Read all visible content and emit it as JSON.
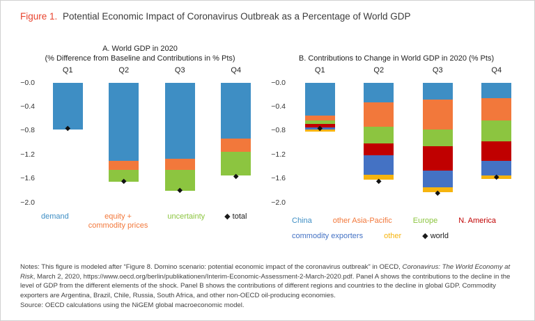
{
  "figure": {
    "label": "Figure 1.",
    "title": "Potential Economic Impact of Coronavirus Outbreak as a Percentage of World GDP"
  },
  "chart_data": [
    {
      "type": "bar",
      "stacked": true,
      "title_lines": [
        "A. World GDP in 2020",
        "(% Difference from Baseline and Contributions in % Pts)"
      ],
      "categories": [
        "Q1",
        "Q2",
        "Q3",
        "Q4"
      ],
      "series": [
        {
          "name": "demand",
          "color": "#3e8ec4",
          "values": [
            -0.78,
            -1.3,
            -1.27,
            -0.93
          ]
        },
        {
          "name": "equity + commodity prices",
          "color": "#f2783b",
          "values": [
            0,
            -0.15,
            -0.18,
            -0.22
          ]
        },
        {
          "name": "uncertainty",
          "color": "#8cc540",
          "values": [
            0,
            -0.2,
            -0.35,
            -0.4
          ]
        }
      ],
      "markers": {
        "name": "total",
        "symbol": "diamond",
        "values": [
          -0.77,
          -1.65,
          -1.8,
          -1.57
        ]
      },
      "ylim": [
        -2.0,
        0.0
      ],
      "yticks": [
        0,
        -0.4,
        -0.8,
        -1.2,
        -1.6,
        -2.0
      ],
      "ytick_labels": [
        "−0.0",
        "−0.4",
        "−0.8",
        "−1.2",
        "−1.6",
        "−2.0"
      ],
      "grid": false,
      "legend_position": "bottom",
      "legend_rows": [
        [
          {
            "label": "demand",
            "color": "#3e8ec4"
          },
          {
            "label": "equity +\ncommodity prices",
            "color": "#f2783b"
          },
          {
            "label": "uncertainty",
            "color": "#8cc540"
          },
          {
            "label": "total",
            "color": "#1a1a1a",
            "diamond": true
          }
        ]
      ]
    },
    {
      "type": "bar",
      "stacked": true,
      "title_lines": [
        "B. Contributions to Change in World GDP in 2020 (% Pts)"
      ],
      "categories": [
        "Q1",
        "Q2",
        "Q3",
        "Q4"
      ],
      "series": [
        {
          "name": "China",
          "color": "#3e8ec4",
          "values": [
            -0.55,
            -0.33,
            -0.28,
            -0.25
          ]
        },
        {
          "name": "other Asia-Pacific",
          "color": "#f2783b",
          "values": [
            -0.08,
            -0.4,
            -0.5,
            -0.38
          ]
        },
        {
          "name": "Europe",
          "color": "#8cc540",
          "values": [
            -0.06,
            -0.28,
            -0.28,
            -0.35
          ]
        },
        {
          "name": "N. America",
          "color": "#c00000",
          "values": [
            -0.05,
            -0.2,
            -0.4,
            -0.32
          ]
        },
        {
          "name": "commodity exporters",
          "color": "#4472c4",
          "values": [
            -0.04,
            -0.33,
            -0.28,
            -0.25
          ]
        },
        {
          "name": "other",
          "color": "#f6b40e",
          "values": [
            -0.03,
            -0.08,
            -0.09,
            -0.05
          ]
        }
      ],
      "markers": {
        "name": "world",
        "symbol": "diamond",
        "values": [
          -0.77,
          -1.65,
          -1.85,
          -1.58
        ]
      },
      "ylim": [
        -2.0,
        0.0
      ],
      "yticks": [
        0,
        -0.4,
        -0.8,
        -1.2,
        -1.6,
        -2.0
      ],
      "ytick_labels": [
        "−0.0",
        "−0.4",
        "−0.8",
        "−1.2",
        "−1.6",
        "−2.0"
      ],
      "grid": false,
      "legend_position": "bottom",
      "legend_rows": [
        [
          {
            "label": "China",
            "color": "#3e8ec4"
          },
          {
            "label": "other Asia-Pacific",
            "color": "#f2783b"
          },
          {
            "label": "Europe",
            "color": "#8cc540"
          },
          {
            "label": "N. America",
            "color": "#c00000"
          }
        ],
        [
          {
            "label": "commodity exporters",
            "color": "#4472c4"
          },
          {
            "label": "other",
            "color": "#f6b40e"
          },
          {
            "label": "world",
            "color": "#1a1a1a",
            "diamond": true
          }
        ]
      ]
    }
  ],
  "notes": {
    "parts": [
      {
        "text": "Notes: This figure is modeled after “Figure 8. Domino scenario: potential economic impact of the coronavirus outbreak” in OECD, ",
        "italic": false
      },
      {
        "text": "Coronavirus: The World Economy at Risk",
        "italic": true
      },
      {
        "text": ", March 2, 2020, https://www.oecd.org/berlin/publikationen/Interim-Economic-Assessment-2-March-2020.pdf. Panel A shows the contributions to the decline in the level of GDP from the different elements of the shock. Panel B shows the contributions of different regions and countries to the decline in global GDP. Commodity exporters are Argentina, Brazil, Chile, Russia, South Africa, and other non-OECD oil-producing economies.",
        "italic": false
      }
    ],
    "source": "Source: OECD calculations using the NiGEM global macroeconomic model."
  }
}
